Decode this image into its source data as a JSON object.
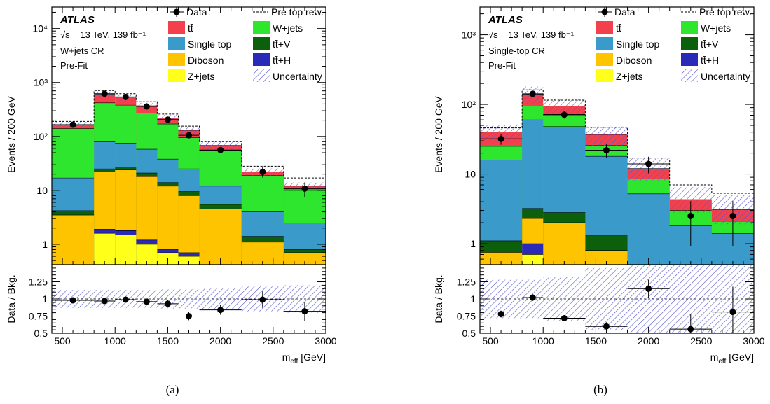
{
  "colors": {
    "ttbar": "#f2414d",
    "wjets": "#2ee62e",
    "singletop": "#3a9ac9",
    "ttV": "#0c600c",
    "diboson": "#ffc400",
    "ttH": "#2a2ab8",
    "zjets": "#ffff1a",
    "unc": "#5858cc"
  },
  "legend": {
    "data": "Data",
    "pre": "Pre top rew.",
    "ttbar": "tt̄",
    "wjets": "W+jets",
    "singletop": "Single top",
    "ttV": "tt̄+V",
    "diboson": "Diboson",
    "ttH": "tt̄+H",
    "zjets": "Z+jets",
    "unc": "Uncertainty"
  },
  "chart_data": [
    {
      "type": "bar",
      "stacked": true,
      "caption": "(a)",
      "atlas_label": "ATLAS",
      "energy_label": "√s = 13 TeV, 139 fb⁻¹",
      "region_label": "W+jets CR",
      "fit_label": "Pre-Fit",
      "ylabel": "Events / 200 GeV",
      "ratio_ylabel": "Data / Bkg.",
      "xlabel": "m_eff [GeV]",
      "xlim": [
        400,
        3000
      ],
      "ylim": [
        0.42,
        25000
      ],
      "yscale": "log",
      "ratio_ylim": [
        0.5,
        1.5
      ],
      "x_ticks": [
        "500",
        "1000",
        "1500",
        "2000",
        "2500",
        "3000"
      ],
      "y_ticks": [
        "1",
        "10",
        "10²",
        "10³",
        "10⁴"
      ],
      "ratio_ticks": [
        "0.5",
        "0.75",
        "1",
        "1.25"
      ],
      "bins": [
        [
          400,
          800
        ],
        [
          800,
          1000
        ],
        [
          1000,
          1200
        ],
        [
          1200,
          1400
        ],
        [
          1400,
          1600
        ],
        [
          1600,
          1800
        ],
        [
          1800,
          2200
        ],
        [
          2200,
          2600
        ],
        [
          2600,
          3000
        ]
      ],
      "stack_order": [
        "zjets",
        "ttH",
        "diboson",
        "ttV",
        "singletop",
        "wjets",
        "ttbar"
      ],
      "stack_cumulative": {
        "zjets": [
          0,
          1.6,
          1.5,
          1.0,
          0.7,
          0.6,
          0,
          0,
          0
        ],
        "ttH": [
          0,
          1.9,
          1.8,
          1.2,
          0.8,
          0.7,
          0,
          0,
          0
        ],
        "diboson": [
          3.5,
          22,
          24,
          18,
          12,
          8,
          4.5,
          1.1,
          0.7
        ],
        "ttV": [
          4.2,
          25,
          27,
          21,
          14,
          9.5,
          5.5,
          1.4,
          0.8
        ],
        "singletop": [
          17,
          80,
          75,
          58,
          38,
          25,
          12,
          4.0,
          2.5
        ],
        "wjets": [
          140,
          420,
          380,
          270,
          170,
          95,
          55,
          19,
          10
        ],
        "ttbar": [
          165,
          600,
          520,
          370,
          220,
          130,
          68,
          22,
          12
        ]
      },
      "pre_top_rew": [
        190,
        710,
        620,
        440,
        260,
        155,
        80,
        28,
        17
      ],
      "unc_band": [
        [
          145,
          185
        ],
        [
          520,
          680
        ],
        [
          450,
          590
        ],
        [
          320,
          420
        ],
        [
          190,
          250
        ],
        [
          112,
          148
        ],
        [
          58,
          78
        ],
        [
          18.5,
          25.5
        ],
        [
          10,
          14
        ]
      ],
      "data_points": [
        {
          "x": 600,
          "y": 165
        },
        {
          "x": 900,
          "y": 620
        },
        {
          "x": 1100,
          "y": 540
        },
        {
          "x": 1300,
          "y": 360
        },
        {
          "x": 1500,
          "y": 205
        },
        {
          "x": 1700,
          "y": 105
        },
        {
          "x": 2000,
          "y": 56
        },
        {
          "x": 2400,
          "y": 22
        },
        {
          "x": 2800,
          "y": 10.8
        }
      ],
      "ratio_points": [
        {
          "x": 600,
          "y": 0.98,
          "err": 0.03
        },
        {
          "x": 900,
          "y": 0.97,
          "err": 0.02
        },
        {
          "x": 1100,
          "y": 0.99,
          "err": 0.03
        },
        {
          "x": 1300,
          "y": 0.96,
          "err": 0.03
        },
        {
          "x": 1500,
          "y": 0.93,
          "err": 0.05
        },
        {
          "x": 1700,
          "y": 0.75,
          "err": 0.06
        },
        {
          "x": 2000,
          "y": 0.84,
          "err": 0.07
        },
        {
          "x": 2400,
          "y": 0.99,
          "err": 0.12
        },
        {
          "x": 2800,
          "y": 0.82,
          "err": 0.14
        }
      ],
      "ratio_unc": [
        [
          0.87,
          1.13
        ],
        [
          0.87,
          1.13
        ],
        [
          0.87,
          1.13
        ],
        [
          0.87,
          1.13
        ],
        [
          0.86,
          1.14
        ],
        [
          0.86,
          1.14
        ],
        [
          0.85,
          1.15
        ],
        [
          0.82,
          1.18
        ],
        [
          0.8,
          1.2
        ]
      ]
    },
    {
      "type": "bar",
      "stacked": true,
      "caption": "(b)",
      "atlas_label": "ATLAS",
      "energy_label": "√s = 13 TeV, 139 fb⁻¹",
      "region_label": "Single-top CR",
      "fit_label": "Pre-Fit",
      "ylabel": "Events / 200 GeV",
      "ratio_ylabel": "Data / Bkg.",
      "xlabel": "m_eff [GeV]",
      "xlim": [
        400,
        3000
      ],
      "ylim": [
        0.5,
        2500
      ],
      "yscale": "log",
      "ratio_ylim": [
        0.5,
        1.5
      ],
      "x_ticks": [
        "500",
        "1000",
        "1500",
        "2000",
        "2500",
        "3000"
      ],
      "y_ticks": [
        "1",
        "10",
        "10²",
        "10³"
      ],
      "ratio_ticks": [
        "0.5",
        "0.75",
        "1",
        "1.25"
      ],
      "bins": [
        [
          400,
          800
        ],
        [
          800,
          1000
        ],
        [
          1000,
          1400
        ],
        [
          1400,
          1800
        ],
        [
          1800,
          2200
        ],
        [
          2200,
          2600
        ],
        [
          2600,
          3000
        ]
      ],
      "stack_order": [
        "zjets",
        "ttH",
        "diboson",
        "ttV",
        "singletop",
        "wjets",
        "ttbar"
      ],
      "stack_cumulative": {
        "zjets": [
          0,
          0.7,
          0,
          0,
          0,
          0,
          0
        ],
        "ttH": [
          0,
          1.0,
          0,
          0,
          0,
          0,
          0
        ],
        "diboson": [
          0.75,
          2.3,
          2.0,
          0.8,
          0,
          0,
          0
        ],
        "ttV": [
          1.1,
          3.2,
          2.8,
          1.3,
          0,
          0,
          0
        ],
        "singletop": [
          16,
          60,
          48,
          18,
          5.2,
          1.8,
          1.4
        ],
        "wjets": [
          25,
          95,
          72,
          26,
          8.5,
          3.0,
          2.1
        ],
        "ttbar": [
          40,
          140,
          95,
          37,
          12,
          4.3,
          3.1
        ]
      },
      "pre_top_rew": [
        46,
        162,
        115,
        47,
        17,
        7.0,
        5.3
      ],
      "unc_band": [
        [
          30,
          50
        ],
        [
          100,
          180
        ],
        [
          70,
          120
        ],
        [
          25,
          48
        ],
        [
          8,
          17
        ],
        [
          2.8,
          6.5
        ],
        [
          1.9,
          5.0
        ]
      ],
      "data_points": [
        {
          "x": 600,
          "y": 32
        },
        {
          "x": 900,
          "y": 142
        },
        {
          "x": 1200,
          "y": 71
        },
        {
          "x": 1600,
          "y": 22
        },
        {
          "x": 2000,
          "y": 14
        },
        {
          "x": 2400,
          "y": 2.5
        },
        {
          "x": 2800,
          "y": 2.5
        }
      ],
      "ratio_points": [
        {
          "x": 600,
          "y": 0.78,
          "err": 0.05
        },
        {
          "x": 900,
          "y": 1.02,
          "err": 0.05
        },
        {
          "x": 1200,
          "y": 0.72,
          "err": 0.04
        },
        {
          "x": 1600,
          "y": 0.6,
          "err": 0.06
        },
        {
          "x": 2000,
          "y": 1.15,
          "err": 0.13
        },
        {
          "x": 2400,
          "y": 0.56,
          "err": 0.22
        },
        {
          "x": 2800,
          "y": 0.81,
          "err": 0.37
        }
      ],
      "ratio_unc": [
        [
          0.72,
          1.28
        ],
        [
          0.72,
          1.28
        ],
        [
          0.68,
          1.32
        ],
        [
          0.55,
          1.45
        ],
        [
          0.5,
          1.5
        ],
        [
          0.5,
          1.5
        ],
        [
          0.5,
          1.5
        ]
      ]
    }
  ]
}
